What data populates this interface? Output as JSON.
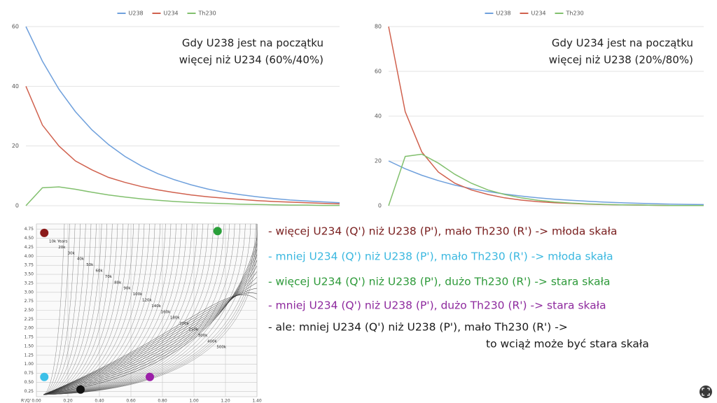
{
  "chart_data": [
    {
      "type": "line",
      "annotations": [
        "Gdy U238 jest na początku",
        "więcej niż U234 (60%/40%)"
      ],
      "categories": [
        null,
        null,
        null,
        null,
        null,
        null,
        null,
        null,
        null,
        null,
        null,
        null,
        null,
        null,
        null,
        null,
        null,
        null,
        null,
        null
      ],
      "series": [
        {
          "name": "U238",
          "color": "#6fa0dc",
          "values": [
            60,
            48.4,
            39.0,
            31.5,
            25.4,
            20.5,
            16.5,
            13.3,
            10.7,
            8.7,
            7.0,
            5.6,
            4.5,
            3.7,
            3.0,
            2.4,
            1.9,
            1.6,
            1.3,
            1.0
          ]
        },
        {
          "name": "U234",
          "color": "#d0614e",
          "values": [
            40,
            27,
            20,
            15,
            12,
            9.5,
            7.8,
            6.4,
            5.3,
            4.4,
            3.6,
            3.0,
            2.5,
            2.1,
            1.7,
            1.4,
            1.2,
            1.0,
            0.8,
            0.6
          ]
        },
        {
          "name": "Th230",
          "color": "#82c06e",
          "values": [
            0,
            6,
            6.3,
            5.5,
            4.5,
            3.6,
            2.9,
            2.3,
            1.8,
            1.4,
            1.1,
            0.9,
            0.7,
            0.5,
            0.4,
            0.3,
            0.2,
            0.2,
            0.1,
            0.1
          ]
        }
      ],
      "ylim": [
        0,
        60
      ],
      "yticks": [
        0,
        20,
        40,
        60
      ],
      "grid": true,
      "legend": "top"
    },
    {
      "type": "line",
      "annotations": [
        "Gdy U234 jest na początku",
        "więcej niż U238 (20%/80%)"
      ],
      "categories": [
        null,
        null,
        null,
        null,
        null,
        null,
        null,
        null,
        null,
        null,
        null,
        null,
        null,
        null,
        null,
        null,
        null,
        null,
        null,
        null
      ],
      "series": [
        {
          "name": "U238",
          "color": "#6fa0dc",
          "values": [
            20,
            16.5,
            13.6,
            11.2,
            9.2,
            7.6,
            6.3,
            5.2,
            4.3,
            3.5,
            2.9,
            2.4,
            2.0,
            1.6,
            1.3,
            1.1,
            0.9,
            0.7,
            0.6,
            0.5
          ]
        },
        {
          "name": "U234",
          "color": "#d0614e",
          "values": [
            80,
            42,
            24,
            15,
            10,
            7,
            5,
            3.5,
            2.5,
            1.8,
            1.3,
            1.0,
            0.7,
            0.5,
            0.4,
            0.3,
            0.2,
            0.1,
            0.1,
            0.1
          ]
        },
        {
          "name": "Th230",
          "color": "#82c06e",
          "values": [
            0,
            22,
            23,
            19,
            14,
            10,
            7,
            5,
            3.5,
            2.4,
            1.7,
            1.2,
            0.8,
            0.6,
            0.4,
            0.3,
            0.2,
            0.1,
            0.1,
            0.1
          ]
        }
      ],
      "ylim": [
        0,
        80
      ],
      "yticks": [
        0,
        20,
        40,
        60,
        80
      ],
      "grid": true,
      "legend": "top"
    },
    {
      "type": "scatter",
      "xlabel": "R'/Q'",
      "x": [
        0.05,
        1.15,
        0.05,
        0.72,
        0.28
      ],
      "values": [
        4.65,
        4.7,
        0.65,
        0.65,
        0.3
      ],
      "colors": [
        "#8b1a1a",
        "#2aa03a",
        "#3cc0e8",
        "#9b1fa8",
        "#111111"
      ],
      "curve_labels": [
        "10k Years",
        "20k",
        "30k",
        "40k",
        "50k",
        "60k",
        "70k",
        "80k",
        "90k",
        "100k",
        "120k",
        "140k",
        "160k",
        "180k",
        "200k",
        "250k",
        "300k",
        "400k",
        "500k"
      ],
      "xlim": [
        0,
        1.4
      ],
      "xticks": [
        {
          "value": 0,
          "label": "0.00"
        },
        {
          "value": 0.2,
          "label": "0.20"
        },
        {
          "value": 0.4,
          "label": "0.40"
        },
        {
          "value": 0.6,
          "label": "0.60"
        },
        {
          "value": 0.8,
          "label": "0.80"
        },
        {
          "value": 1,
          "label": "1.00"
        },
        {
          "value": 1.2,
          "label": "1.20"
        },
        {
          "value": 1.4,
          "label": "1.40"
        }
      ],
      "ylim": [
        0.1,
        4.9
      ],
      "yticks": [
        0.25,
        {
          "value": 0.5,
          "label": "0.50"
        },
        0.75,
        {
          "value": 1,
          "label": "1.00"
        },
        1.25,
        {
          "value": 1.5,
          "label": "1.50"
        },
        1.75,
        {
          "value": 2,
          "label": "2.00"
        },
        2.25,
        {
          "value": 2.5,
          "label": "2.50"
        },
        2.75,
        {
          "value": 3,
          "label": "3.00"
        },
        3.25,
        {
          "value": 3.5,
          "label": "3.50"
        },
        3.75,
        {
          "value": 4,
          "label": "4.00"
        },
        4.25,
        {
          "value": 4.5,
          "label": "4.50"
        },
        4.75
      ],
      "grid": true
    }
  ],
  "notes": [
    {
      "color": "#7a2020",
      "lines": [
        "- więcej U234 (Q') niż U238 (P'), mało Th230 (R') -> młoda skała"
      ]
    },
    {
      "color": "#3bb8e0",
      "lines": [
        "- mniej U234 (Q') niż U238 (P'), mało Th230 (R') -> młoda skała"
      ]
    },
    {
      "color": "#2e9a3a",
      "lines": [
        "- więcej U234 (Q') niż U238 (P'), dużo Th230 (R') -> stara skała"
      ]
    },
    {
      "color": "#8e2a9e",
      "lines": [
        "- mniej U234 (Q') niż U238 (P'), dużo Th230 (R') -> stara skała"
      ]
    },
    {
      "color": "#1a1a1a",
      "lines": [
        "- ale: mniej U234 (Q') niż U238 (P'), mało Th230 (R') ->",
        "to wciąż może być stara skała"
      ]
    }
  ]
}
